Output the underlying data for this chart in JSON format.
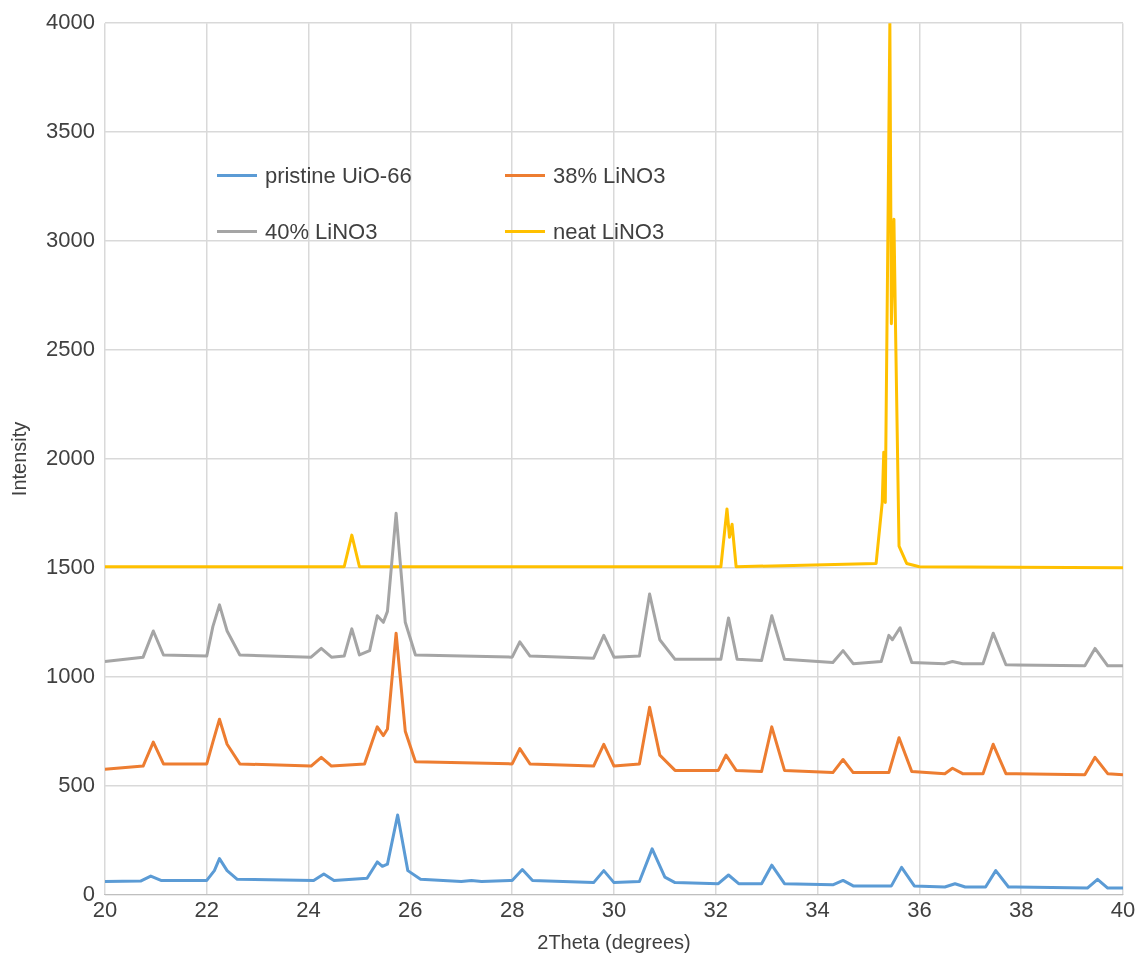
{
  "chart_data": {
    "type": "line",
    "xlabel": "2Theta (degrees)",
    "ylabel": "Intensity",
    "xlim": [
      20,
      40
    ],
    "xticks": [
      20,
      22,
      24,
      26,
      28,
      30,
      32,
      34,
      36,
      38,
      40
    ],
    "ylim": [
      0,
      4000
    ],
    "yticks": [
      0,
      500,
      1000,
      1500,
      2000,
      2500,
      3000,
      3500,
      4000
    ],
    "grid": true,
    "legend": "top left",
    "marker": "none",
    "line_style": "solid",
    "series": [
      {
        "name": "pristine UiO-66",
        "color": "#5b9bd5",
        "x": [
          20,
          20.7,
          20.9,
          21.1,
          22.0,
          22.15,
          22.25,
          22.4,
          22.6,
          24.1,
          24.3,
          24.5,
          25.15,
          25.35,
          25.45,
          25.55,
          25.75,
          25.95,
          26.2,
          27.0,
          27.2,
          27.4,
          28.0,
          28.2,
          28.4,
          29.6,
          29.8,
          30.0,
          30.5,
          30.75,
          31.0,
          31.2,
          32.05,
          32.25,
          32.45,
          32.9,
          33.1,
          33.35,
          34.3,
          34.5,
          34.7,
          35.45,
          35.65,
          35.9,
          36.5,
          36.7,
          36.9,
          37.3,
          37.5,
          37.75,
          39.3,
          39.5,
          39.7,
          40
        ],
        "values": [
          60,
          62,
          85,
          65,
          65,
          110,
          165,
          110,
          70,
          65,
          95,
          65,
          75,
          150,
          130,
          140,
          365,
          110,
          70,
          60,
          65,
          60,
          65,
          115,
          65,
          55,
          110,
          55,
          60,
          210,
          80,
          55,
          50,
          90,
          50,
          50,
          135,
          50,
          45,
          65,
          40,
          40,
          125,
          40,
          35,
          50,
          35,
          35,
          110,
          35,
          30,
          70,
          30,
          30
        ]
      },
      {
        "name": "38% LiNO3",
        "color": "#ed7d31",
        "x": [
          20,
          20.75,
          20.95,
          21.15,
          22.0,
          22.12,
          22.25,
          22.4,
          22.65,
          24.05,
          24.25,
          24.45,
          25.1,
          25.35,
          25.47,
          25.55,
          25.72,
          25.9,
          26.1,
          28.0,
          28.15,
          28.35,
          29.6,
          29.8,
          30.0,
          30.5,
          30.7,
          30.9,
          31.2,
          32.05,
          32.2,
          32.4,
          32.9,
          33.1,
          33.35,
          34.3,
          34.5,
          34.7,
          35.4,
          35.6,
          35.85,
          36.5,
          36.65,
          36.85,
          37.25,
          37.45,
          37.7,
          39.25,
          39.45,
          39.7,
          40
        ],
        "values": [
          575,
          590,
          700,
          600,
          600,
          700,
          805,
          690,
          600,
          590,
          630,
          590,
          600,
          770,
          730,
          760,
          1200,
          750,
          610,
          600,
          670,
          600,
          590,
          690,
          590,
          600,
          860,
          640,
          570,
          570,
          640,
          570,
          565,
          770,
          570,
          560,
          620,
          560,
          560,
          720,
          565,
          555,
          580,
          555,
          555,
          690,
          555,
          550,
          630,
          555,
          550
        ]
      },
      {
        "name": "40% LiNO3",
        "color": "#a5a5a5",
        "x": [
          20,
          20.75,
          20.95,
          21.15,
          22.0,
          22.12,
          22.25,
          22.4,
          22.65,
          24.05,
          24.25,
          24.45,
          24.7,
          24.85,
          25.0,
          25.2,
          25.35,
          25.47,
          25.55,
          25.72,
          25.9,
          26.1,
          28.0,
          28.15,
          28.35,
          29.6,
          29.8,
          30.0,
          30.5,
          30.7,
          30.9,
          31.2,
          32.1,
          32.25,
          32.42,
          32.9,
          33.1,
          33.35,
          34.3,
          34.5,
          34.7,
          35.25,
          35.4,
          35.47,
          35.62,
          35.85,
          36.5,
          36.65,
          36.85,
          37.25,
          37.45,
          37.7,
          39.25,
          39.45,
          39.7,
          40
        ],
        "values": [
          1070,
          1090,
          1210,
          1100,
          1095,
          1230,
          1330,
          1210,
          1100,
          1090,
          1130,
          1090,
          1095,
          1220,
          1100,
          1120,
          1280,
          1250,
          1300,
          1750,
          1250,
          1100,
          1090,
          1160,
          1095,
          1085,
          1190,
          1090,
          1095,
          1380,
          1170,
          1080,
          1080,
          1270,
          1080,
          1075,
          1280,
          1080,
          1065,
          1120,
          1060,
          1070,
          1190,
          1170,
          1225,
          1065,
          1060,
          1070,
          1060,
          1060,
          1200,
          1055,
          1050,
          1130,
          1050,
          1050
        ]
      },
      {
        "name": "neat LiNO3",
        "color": "#ffc000",
        "x": [
          20,
          24.7,
          24.85,
          25.0,
          32.1,
          32.22,
          32.27,
          32.32,
          32.4,
          35.15,
          35.27,
          35.3,
          35.33,
          35.38,
          35.42,
          35.45,
          35.5,
          35.53,
          35.6,
          35.75,
          36,
          40
        ],
        "values": [
          1505,
          1505,
          1650,
          1505,
          1505,
          1770,
          1640,
          1700,
          1505,
          1520,
          1800,
          2030,
          1800,
          3000,
          4000,
          2620,
          3100,
          2620,
          1600,
          1520,
          1505,
          1500
        ]
      }
    ]
  }
}
